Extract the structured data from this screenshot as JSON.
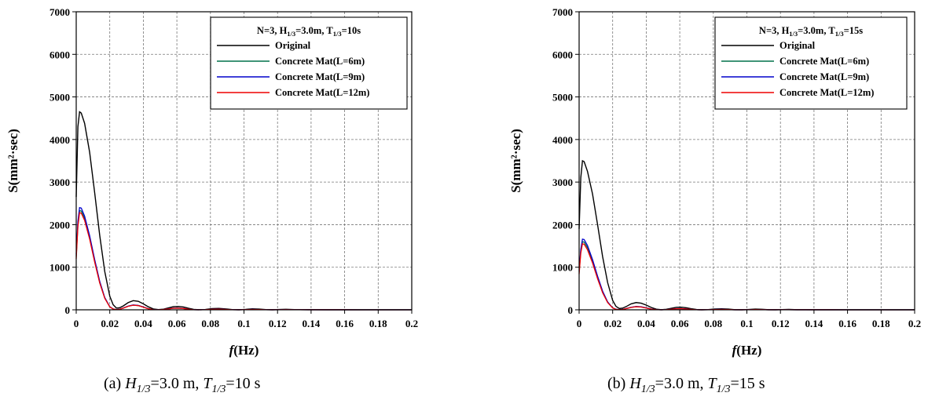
{
  "chart_data": [
    {
      "type": "line",
      "ylabel": "S(mm²·sec)",
      "xlabel": "f(Hz)",
      "xlim": [
        0,
        0.2
      ],
      "ylim": [
        0,
        7000
      ],
      "xticks": [
        0,
        0.02,
        0.04,
        0.06,
        0.08,
        0.1,
        0.12,
        0.14,
        0.16,
        0.18,
        0.2
      ],
      "xtick_labels": [
        "0",
        "0.02",
        "0.04",
        "0.06",
        "0.08",
        "0.1",
        "0.12",
        "0.14",
        "0.16",
        "0.18",
        "0.2"
      ],
      "yticks": [
        0,
        1000,
        2000,
        3000,
        4000,
        5000,
        6000,
        7000
      ],
      "ytick_labels": [
        "0",
        "1000",
        "2000",
        "3000",
        "4000",
        "5000",
        "6000",
        "7000"
      ],
      "grid": true,
      "legend_title": "N=3, H1/3=3.0m, T1/3=10s",
      "legend_position": "top-right",
      "caption": "(a) H1/3=3.0 m, T1/3=10 s",
      "series": [
        {
          "name": "Original",
          "color": "#000000",
          "x": [
            0,
            0.001,
            0.002,
            0.003,
            0.005,
            0.008,
            0.011,
            0.014,
            0.017,
            0.02,
            0.022,
            0.024,
            0.026,
            0.028,
            0.031,
            0.034,
            0.037,
            0.04,
            0.043,
            0.046,
            0.049,
            0.052,
            0.055,
            0.058,
            0.061,
            0.064,
            0.067,
            0.07,
            0.073,
            0.077,
            0.081,
            0.085,
            0.089,
            0.093,
            0.097,
            0.101,
            0.105,
            0.109,
            0.113,
            0.117,
            0.121,
            0.125,
            0.13,
            0.135,
            0.14,
            0.15,
            0.16,
            0.17,
            0.18,
            0.19,
            0.2
          ],
          "y": [
            2650,
            4300,
            4650,
            4620,
            4380,
            3700,
            2750,
            1750,
            900,
            320,
            120,
            40,
            50,
            90,
            170,
            215,
            200,
            140,
            70,
            20,
            5,
            15,
            45,
            75,
            80,
            65,
            35,
            10,
            3,
            8,
            28,
            32,
            22,
            5,
            2,
            10,
            24,
            18,
            5,
            2,
            8,
            12,
            6,
            4,
            3,
            2,
            2,
            1,
            1,
            1,
            1
          ]
        },
        {
          "name": "Concrete Mat(L=6m)",
          "color": "#00704a",
          "x": [
            0,
            0.001,
            0.002,
            0.003,
            0.005,
            0.008,
            0.011,
            0.014,
            0.017,
            0.02,
            0.022,
            0.024,
            0.026,
            0.028,
            0.031,
            0.034,
            0.037,
            0.04,
            0.043,
            0.046,
            0.049,
            0.052,
            0.055,
            0.058,
            0.061,
            0.064,
            0.067,
            0.07,
            0.073,
            0.077,
            0.081,
            0.085,
            0.089,
            0.093,
            0.097,
            0.101,
            0.105,
            0.109,
            0.113,
            0.117,
            0.121,
            0.125,
            0.13,
            0.14,
            0.15,
            0.16,
            0.17,
            0.18,
            0.19,
            0.2
          ],
          "y": [
            1250,
            2000,
            2330,
            2320,
            2150,
            1700,
            1150,
            650,
            280,
            70,
            20,
            5,
            15,
            40,
            85,
            110,
            100,
            65,
            25,
            5,
            2,
            8,
            22,
            38,
            40,
            30,
            14,
            3,
            1,
            4,
            12,
            14,
            9,
            2,
            1,
            4,
            10,
            7,
            2,
            1,
            3,
            5,
            2,
            1,
            1,
            1,
            0,
            0,
            0,
            0
          ]
        },
        {
          "name": "Concrete Mat(L=9m)",
          "color": "#0000cc",
          "x": [
            0,
            0.001,
            0.002,
            0.003,
            0.005,
            0.008,
            0.011,
            0.014,
            0.017,
            0.02,
            0.022,
            0.024,
            0.026,
            0.028,
            0.031,
            0.034,
            0.037,
            0.04,
            0.043,
            0.046,
            0.049,
            0.052,
            0.055,
            0.058,
            0.061,
            0.064,
            0.067,
            0.07,
            0.073,
            0.077,
            0.081,
            0.085,
            0.089,
            0.093,
            0.097,
            0.101,
            0.105,
            0.109,
            0.113,
            0.117,
            0.121,
            0.125,
            0.13,
            0.14,
            0.15,
            0.16,
            0.17,
            0.18,
            0.19,
            0.2
          ],
          "y": [
            1300,
            2080,
            2400,
            2390,
            2200,
            1740,
            1180,
            670,
            290,
            72,
            21,
            5,
            16,
            42,
            88,
            114,
            104,
            67,
            26,
            5,
            2,
            8,
            23,
            39,
            42,
            31,
            14,
            3,
            1,
            4,
            12,
            15,
            9,
            2,
            1,
            4,
            10,
            7,
            2,
            1,
            3,
            5,
            2,
            1,
            1,
            1,
            0,
            0,
            0,
            0
          ]
        },
        {
          "name": "Concrete Mat(L=12m)",
          "color": "#ee0000",
          "x": [
            0,
            0.001,
            0.002,
            0.003,
            0.005,
            0.008,
            0.011,
            0.014,
            0.017,
            0.02,
            0.022,
            0.024,
            0.026,
            0.028,
            0.031,
            0.034,
            0.037,
            0.04,
            0.043,
            0.046,
            0.049,
            0.052,
            0.055,
            0.058,
            0.061,
            0.064,
            0.067,
            0.07,
            0.073,
            0.077,
            0.081,
            0.085,
            0.089,
            0.093,
            0.097,
            0.101,
            0.105,
            0.109,
            0.113,
            0.117,
            0.121,
            0.125,
            0.13,
            0.14,
            0.15,
            0.16,
            0.17,
            0.18,
            0.19,
            0.2
          ],
          "y": [
            1200,
            1950,
            2280,
            2270,
            2100,
            1660,
            1120,
            630,
            270,
            68,
            19,
            5,
            14,
            39,
            83,
            108,
            98,
            63,
            24,
            5,
            2,
            8,
            21,
            37,
            39,
            29,
            13,
            3,
            1,
            4,
            11,
            14,
            8,
            2,
            1,
            4,
            9,
            7,
            2,
            1,
            3,
            5,
            2,
            1,
            1,
            1,
            0,
            0,
            0,
            0
          ]
        }
      ]
    },
    {
      "type": "line",
      "ylabel": "S(mm²·sec)",
      "xlabel": "f(Hz)",
      "xlim": [
        0,
        0.2
      ],
      "ylim": [
        0,
        7000
      ],
      "xticks": [
        0,
        0.02,
        0.04,
        0.06,
        0.08,
        0.1,
        0.12,
        0.14,
        0.16,
        0.18,
        0.2
      ],
      "xtick_labels": [
        "0",
        "0.02",
        "0.04",
        "0.06",
        "0.08",
        "0.1",
        "0.12",
        "0.14",
        "0.16",
        "0.18",
        "0.2"
      ],
      "yticks": [
        0,
        1000,
        2000,
        3000,
        4000,
        5000,
        6000,
        7000
      ],
      "ytick_labels": [
        "0",
        "1000",
        "2000",
        "3000",
        "4000",
        "5000",
        "6000",
        "7000"
      ],
      "grid": true,
      "legend_title": "N=3, H1/3=3.0m, T1/3=15s",
      "legend_position": "top-right",
      "caption": "(b) H1/3=3.0 m, T1/3=15 s",
      "series": [
        {
          "name": "Original",
          "color": "#000000",
          "x": [
            0,
            0.001,
            0.002,
            0.003,
            0.005,
            0.008,
            0.011,
            0.014,
            0.017,
            0.02,
            0.022,
            0.024,
            0.026,
            0.028,
            0.031,
            0.034,
            0.037,
            0.04,
            0.043,
            0.046,
            0.049,
            0.052,
            0.055,
            0.058,
            0.061,
            0.064,
            0.067,
            0.07,
            0.073,
            0.077,
            0.081,
            0.085,
            0.089,
            0.093,
            0.097,
            0.101,
            0.105,
            0.109,
            0.113,
            0.117,
            0.121,
            0.125,
            0.13,
            0.135,
            0.14,
            0.15,
            0.16,
            0.17,
            0.18,
            0.19,
            0.2
          ],
          "y": [
            1900,
            3100,
            3500,
            3480,
            3250,
            2720,
            2000,
            1250,
            640,
            220,
            80,
            30,
            40,
            75,
            140,
            170,
            155,
            110,
            55,
            15,
            4,
            12,
            35,
            58,
            60,
            48,
            25,
            8,
            2,
            6,
            20,
            23,
            16,
            4,
            2,
            8,
            17,
            12,
            4,
            2,
            6,
            9,
            4,
            3,
            2,
            2,
            1,
            1,
            1,
            1,
            1
          ]
        },
        {
          "name": "Concrete Mat(L=6m)",
          "color": "#00704a",
          "x": [
            0,
            0.001,
            0.002,
            0.003,
            0.005,
            0.008,
            0.011,
            0.014,
            0.017,
            0.02,
            0.022,
            0.024,
            0.026,
            0.028,
            0.031,
            0.034,
            0.037,
            0.04,
            0.043,
            0.046,
            0.049,
            0.052,
            0.055,
            0.058,
            0.061,
            0.064,
            0.067,
            0.07,
            0.073,
            0.077,
            0.081,
            0.085,
            0.089,
            0.093,
            0.097,
            0.101,
            0.105,
            0.109,
            0.113,
            0.117,
            0.121,
            0.125,
            0.13,
            0.14,
            0.15,
            0.16,
            0.17,
            0.18,
            0.19,
            0.2
          ],
          "y": [
            880,
            1380,
            1600,
            1590,
            1460,
            1140,
            760,
            420,
            180,
            45,
            12,
            4,
            10,
            28,
            58,
            75,
            68,
            44,
            17,
            4,
            1,
            5,
            15,
            26,
            27,
            20,
            9,
            2,
            1,
            3,
            8,
            9,
            6,
            1,
            1,
            3,
            7,
            5,
            1,
            1,
            2,
            3,
            1,
            1,
            1,
            0,
            0,
            0,
            0,
            0
          ]
        },
        {
          "name": "Concrete Mat(L=9m)",
          "color": "#0000cc",
          "x": [
            0,
            0.001,
            0.002,
            0.003,
            0.005,
            0.008,
            0.011,
            0.014,
            0.017,
            0.02,
            0.022,
            0.024,
            0.026,
            0.028,
            0.031,
            0.034,
            0.037,
            0.04,
            0.043,
            0.046,
            0.049,
            0.052,
            0.055,
            0.058,
            0.061,
            0.064,
            0.067,
            0.07,
            0.073,
            0.077,
            0.081,
            0.085,
            0.089,
            0.093,
            0.097,
            0.101,
            0.105,
            0.109,
            0.113,
            0.117,
            0.121,
            0.125,
            0.13,
            0.14,
            0.15,
            0.16,
            0.17,
            0.18,
            0.19,
            0.2
          ],
          "y": [
            920,
            1420,
            1660,
            1650,
            1510,
            1180,
            790,
            440,
            185,
            46,
            13,
            4,
            10,
            29,
            60,
            78,
            70,
            45,
            18,
            4,
            1,
            5,
            15,
            27,
            28,
            21,
            9,
            2,
            1,
            3,
            8,
            10,
            6,
            1,
            1,
            3,
            7,
            5,
            1,
            1,
            2,
            3,
            1,
            1,
            1,
            0,
            0,
            0,
            0,
            0
          ]
        },
        {
          "name": "Concrete Mat(L=12m)",
          "color": "#ee0000",
          "x": [
            0,
            0.001,
            0.002,
            0.003,
            0.005,
            0.008,
            0.011,
            0.014,
            0.017,
            0.02,
            0.022,
            0.024,
            0.026,
            0.028,
            0.031,
            0.034,
            0.037,
            0.04,
            0.043,
            0.046,
            0.049,
            0.052,
            0.055,
            0.058,
            0.061,
            0.064,
            0.067,
            0.07,
            0.073,
            0.077,
            0.081,
            0.085,
            0.089,
            0.093,
            0.097,
            0.101,
            0.105,
            0.109,
            0.113,
            0.117,
            0.121,
            0.125,
            0.13,
            0.14,
            0.15,
            0.16,
            0.17,
            0.18,
            0.19,
            0.2
          ],
          "y": [
            840,
            1330,
            1550,
            1540,
            1410,
            1100,
            730,
            400,
            170,
            43,
            12,
            4,
            9,
            27,
            56,
            72,
            65,
            42,
            16,
            4,
            1,
            5,
            14,
            25,
            26,
            19,
            8,
            2,
            1,
            3,
            7,
            9,
            6,
            1,
            1,
            3,
            6,
            5,
            1,
            1,
            2,
            3,
            1,
            1,
            1,
            0,
            0,
            0,
            0,
            0
          ]
        }
      ]
    }
  ]
}
